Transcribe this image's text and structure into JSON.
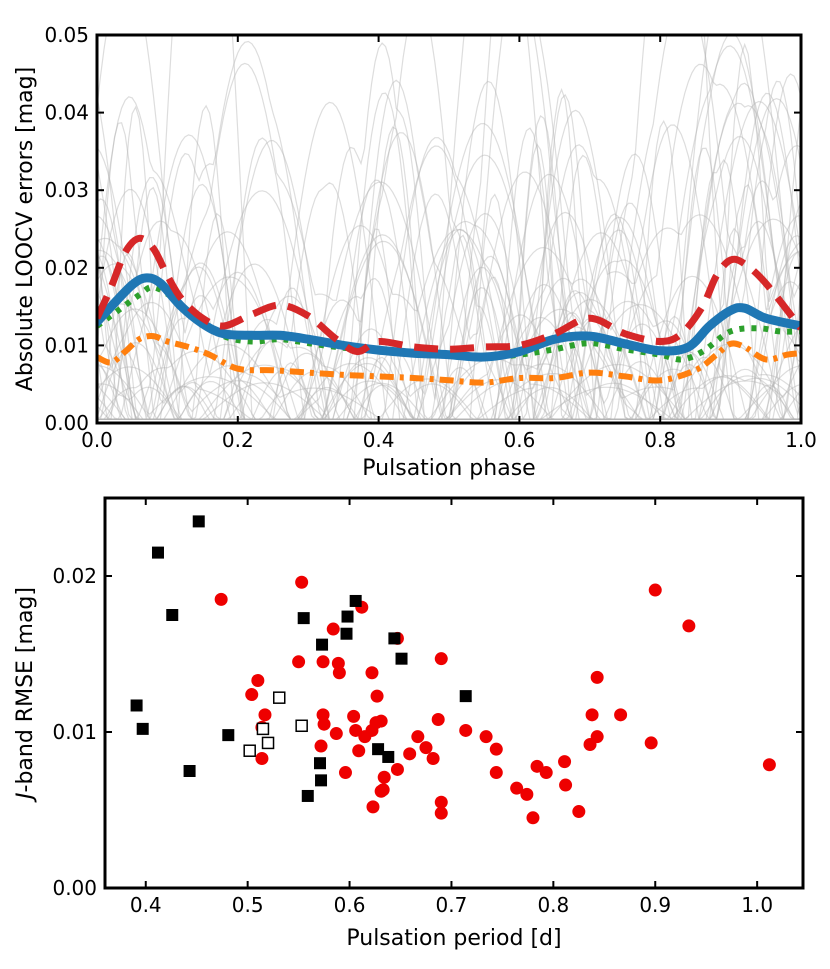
{
  "chart_data": [
    {
      "type": "line",
      "title": "",
      "xlabel": "Pulsation phase",
      "ylabel": "Absolute LOOCV errors [mag]",
      "xlim": [
        0.0,
        1.0
      ],
      "ylim": [
        0.0,
        0.05
      ],
      "xticks": [
        "0.0",
        "0.2",
        "0.4",
        "0.6",
        "0.8",
        "1.0"
      ],
      "yticks": [
        "0.00",
        "0.01",
        "0.02",
        "0.03",
        "0.04",
        "0.05"
      ],
      "grid": false,
      "background_curves": {
        "count": 60,
        "color": "#b4b4b4",
        "description": "individual-star error curves"
      },
      "series": [
        {
          "name": "red dashed",
          "style": "dashed",
          "color": "#d62728",
          "x": [
            0.0,
            0.02,
            0.04,
            0.06,
            0.08,
            0.1,
            0.12,
            0.15,
            0.18,
            0.22,
            0.26,
            0.3,
            0.34,
            0.37,
            0.4,
            0.45,
            0.5,
            0.55,
            0.6,
            0.65,
            0.7,
            0.75,
            0.8,
            0.83,
            0.86,
            0.88,
            0.9,
            0.92,
            0.95,
            1.0
          ],
          "y": [
            0.0135,
            0.0175,
            0.022,
            0.0238,
            0.0225,
            0.019,
            0.016,
            0.0135,
            0.0125,
            0.014,
            0.0152,
            0.0138,
            0.0108,
            0.0092,
            0.0105,
            0.0098,
            0.0095,
            0.0098,
            0.01,
            0.0115,
            0.0135,
            0.0115,
            0.0105,
            0.0115,
            0.015,
            0.019,
            0.021,
            0.0205,
            0.018,
            0.0122
          ]
        },
        {
          "name": "blue solid",
          "style": "solid",
          "color": "#1f77b4",
          "x": [
            0.0,
            0.02,
            0.05,
            0.07,
            0.09,
            0.12,
            0.15,
            0.18,
            0.22,
            0.26,
            0.3,
            0.35,
            0.4,
            0.45,
            0.5,
            0.55,
            0.6,
            0.65,
            0.7,
            0.75,
            0.8,
            0.84,
            0.87,
            0.9,
            0.92,
            0.95,
            1.0
          ],
          "y": [
            0.013,
            0.015,
            0.0178,
            0.0187,
            0.018,
            0.015,
            0.0128,
            0.0115,
            0.0113,
            0.0113,
            0.0108,
            0.01,
            0.0094,
            0.009,
            0.0088,
            0.0085,
            0.0092,
            0.0108,
            0.0112,
            0.0102,
            0.0093,
            0.0098,
            0.0125,
            0.0145,
            0.0148,
            0.0135,
            0.0125
          ]
        },
        {
          "name": "green dotted",
          "style": "dotted",
          "color": "#2ca02c",
          "x": [
            0.0,
            0.03,
            0.06,
            0.08,
            0.11,
            0.14,
            0.18,
            0.22,
            0.26,
            0.3,
            0.35,
            0.4,
            0.45,
            0.5,
            0.55,
            0.6,
            0.65,
            0.7,
            0.75,
            0.8,
            0.83,
            0.86,
            0.9,
            0.94,
            0.97,
            1.0
          ],
          "y": [
            0.0125,
            0.0145,
            0.0165,
            0.0175,
            0.016,
            0.0135,
            0.0112,
            0.0105,
            0.0108,
            0.0103,
            0.0097,
            0.0095,
            0.009,
            0.0088,
            0.0085,
            0.0088,
            0.0095,
            0.0103,
            0.0095,
            0.0088,
            0.0082,
            0.0092,
            0.0118,
            0.0122,
            0.0118,
            0.0118
          ]
        },
        {
          "name": "orange dash-dot",
          "style": "dashdot",
          "color": "#ff7f0e",
          "x": [
            0.0,
            0.02,
            0.04,
            0.06,
            0.08,
            0.1,
            0.13,
            0.16,
            0.2,
            0.25,
            0.3,
            0.35,
            0.4,
            0.45,
            0.5,
            0.55,
            0.6,
            0.65,
            0.7,
            0.75,
            0.8,
            0.85,
            0.88,
            0.9,
            0.92,
            0.95,
            0.98,
            1.0
          ],
          "y": [
            0.0085,
            0.0078,
            0.0092,
            0.0108,
            0.0112,
            0.0105,
            0.0098,
            0.0088,
            0.007,
            0.0068,
            0.0065,
            0.0062,
            0.006,
            0.0058,
            0.0055,
            0.0052,
            0.0058,
            0.0058,
            0.0065,
            0.006,
            0.0055,
            0.0068,
            0.0088,
            0.0102,
            0.0098,
            0.0082,
            0.0088,
            0.009
          ]
        }
      ]
    },
    {
      "type": "scatter",
      "title": "",
      "xlabel": "Pulsation period [d]",
      "ylabel": "J-band RMSE [mag]",
      "ylabel_prefix": "J",
      "ylabel_suffix": "-band RMSE [mag]",
      "xlim": [
        0.36,
        1.045
      ],
      "ylim": [
        0.0,
        0.025
      ],
      "xticks": [
        "0.4",
        "0.5",
        "0.6",
        "0.7",
        "0.8",
        "0.9",
        "1.0"
      ],
      "yticks": [
        "0.00",
        "0.01",
        "0.02"
      ],
      "grid": false,
      "series": [
        {
          "name": "red circles",
          "marker": "circle",
          "color": "#ee0000",
          "points": [
            [
              0.474,
              0.0185
            ],
            [
              0.553,
              0.0196
            ],
            [
              0.612,
              0.018
            ],
            [
              0.647,
              0.016
            ],
            [
              0.584,
              0.0166
            ],
            [
              0.55,
              0.0145
            ],
            [
              0.574,
              0.0145
            ],
            [
              0.589,
              0.0144
            ],
            [
              0.59,
              0.0138
            ],
            [
              0.622,
              0.0138
            ],
            [
              0.69,
              0.0147
            ],
            [
              0.51,
              0.0133
            ],
            [
              0.504,
              0.0124
            ],
            [
              0.627,
              0.0123
            ],
            [
              0.517,
              0.0111
            ],
            [
              0.574,
              0.0111
            ],
            [
              0.604,
              0.011
            ],
            [
              0.626,
              0.0106
            ],
            [
              0.631,
              0.0107
            ],
            [
              0.606,
              0.0101
            ],
            [
              0.622,
              0.0101
            ],
            [
              0.514,
              0.0103
            ],
            [
              0.575,
              0.0105
            ],
            [
              0.572,
              0.0091
            ],
            [
              0.587,
              0.0099
            ],
            [
              0.615,
              0.0097
            ],
            [
              0.609,
              0.0088
            ],
            [
              0.659,
              0.0086
            ],
            [
              0.667,
              0.0097
            ],
            [
              0.675,
              0.009
            ],
            [
              0.596,
              0.0074
            ],
            [
              0.631,
              0.0062
            ],
            [
              0.634,
              0.0071
            ],
            [
              0.647,
              0.0076
            ],
            [
              0.687,
              0.0108
            ],
            [
              0.682,
              0.0083
            ],
            [
              0.633,
              0.0063
            ],
            [
              0.623,
              0.0052
            ],
            [
              0.69,
              0.0055
            ],
            [
              0.69,
              0.0048
            ],
            [
              0.514,
              0.0083
            ],
            [
              0.734,
              0.0097
            ],
            [
              0.744,
              0.0089
            ],
            [
              0.744,
              0.0074
            ],
            [
              0.714,
              0.0101
            ],
            [
              0.764,
              0.0064
            ],
            [
              0.774,
              0.006
            ],
            [
              0.78,
              0.0045
            ],
            [
              0.784,
              0.0078
            ],
            [
              0.793,
              0.0074
            ],
            [
              0.811,
              0.0081
            ],
            [
              0.812,
              0.0066
            ],
            [
              0.825,
              0.0049
            ],
            [
              0.838,
              0.0111
            ],
            [
              0.836,
              0.0092
            ],
            [
              0.843,
              0.0135
            ],
            [
              0.843,
              0.0097
            ],
            [
              0.866,
              0.0111
            ],
            [
              0.9,
              0.0191
            ],
            [
              0.933,
              0.0168
            ],
            [
              0.896,
              0.0093
            ],
            [
              1.012,
              0.0079
            ]
          ]
        },
        {
          "name": "black filled squares",
          "marker": "square",
          "color": "#000000",
          "points": [
            [
              0.452,
              0.0235
            ],
            [
              0.412,
              0.0215
            ],
            [
              0.426,
              0.0175
            ],
            [
              0.391,
              0.0117
            ],
            [
              0.397,
              0.0102
            ],
            [
              0.443,
              0.0075
            ],
            [
              0.481,
              0.0098
            ],
            [
              0.555,
              0.0173
            ],
            [
              0.573,
              0.0156
            ],
            [
              0.597,
              0.0163
            ],
            [
              0.598,
              0.0174
            ],
            [
              0.606,
              0.0184
            ],
            [
              0.644,
              0.016
            ],
            [
              0.651,
              0.0147
            ],
            [
              0.571,
              0.008
            ],
            [
              0.572,
              0.0069
            ],
            [
              0.559,
              0.0059
            ],
            [
              0.628,
              0.0089
            ],
            [
              0.638,
              0.0084
            ],
            [
              0.714,
              0.0123
            ]
          ]
        },
        {
          "name": "open squares",
          "marker": "open-square",
          "color": "#000000",
          "points": [
            [
              0.502,
              0.0088
            ],
            [
              0.515,
              0.0102
            ],
            [
              0.52,
              0.0093
            ],
            [
              0.531,
              0.0122
            ],
            [
              0.553,
              0.0104
            ]
          ]
        }
      ]
    }
  ]
}
